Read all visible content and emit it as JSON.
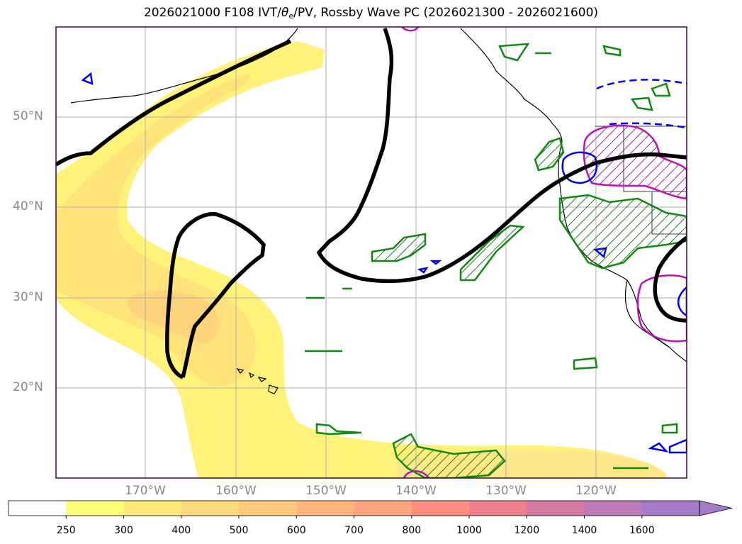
{
  "title": {
    "prefix": "2026021000 F108 IVT/",
    "theta": "θ",
    "theta_sub": "e",
    "suffix": "/PV, Rossby Wave PC (2026021300 - 2026021600)"
  },
  "map": {
    "lat_labels": [
      "50°N",
      "40°N",
      "30°N",
      "20°N"
    ],
    "lon_labels": [
      "170°W",
      "160°W",
      "150°W",
      "140°W",
      "130°W",
      "120°W"
    ],
    "colors": {
      "frame": "#3a0a3a",
      "grid": "#b0b0b0",
      "ivt_250": "#fff176",
      "ivt_300": "#ffe07a",
      "ivt_400": "#fdd07a",
      "pv_contour": "#000000",
      "green_contour": "#118811",
      "blue_contour": "#0000ee",
      "magenta_contour": "#bb11bb",
      "coastline": "#000000"
    }
  },
  "colorbar": {
    "labels": [
      "250",
      "300",
      "400",
      "500",
      "600",
      "700",
      "800",
      "1000",
      "1200",
      "1400",
      "1600"
    ],
    "colors": [
      "#ffffff",
      "#ffff7a",
      "#ffe97a",
      "#ffd97c",
      "#ffc97e",
      "#ffb67e",
      "#ffa47e",
      "#ff8d7e",
      "#ee7e8a",
      "#d27aa4",
      "#bf7ab8",
      "#a57ac8"
    ]
  }
}
